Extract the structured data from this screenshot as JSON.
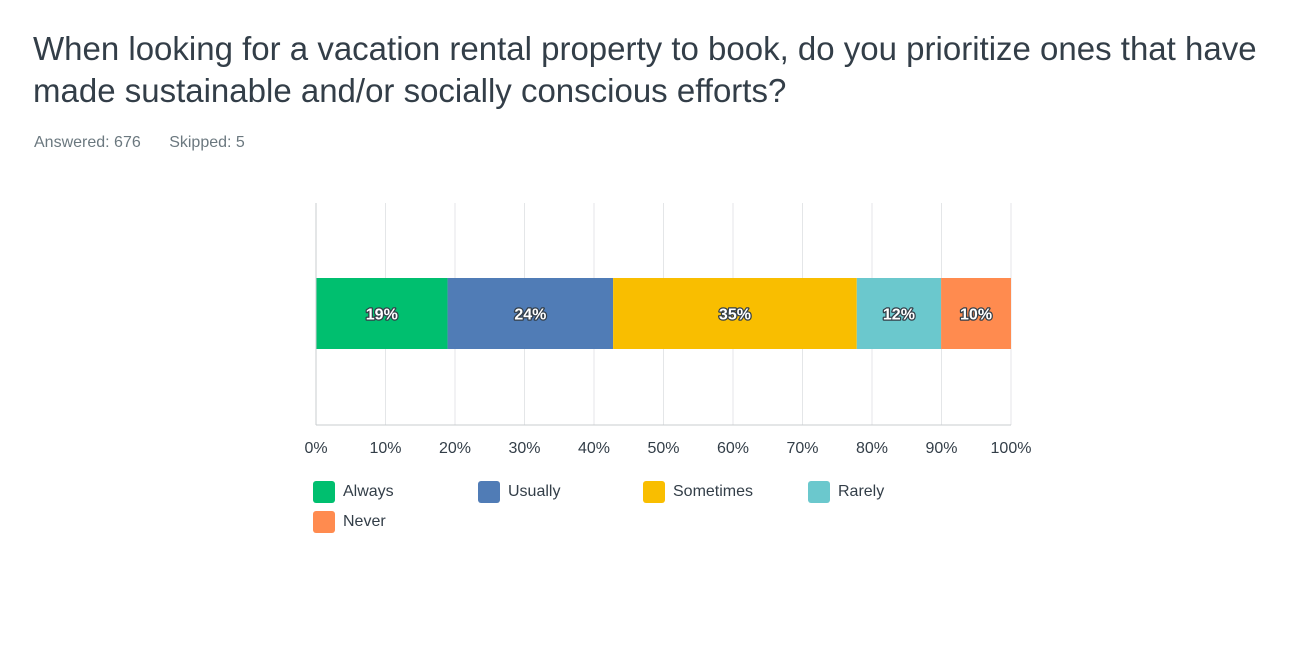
{
  "question": {
    "title": "When looking for a vacation rental property to book, do you prioritize ones that have made sustainable and/or socially conscious efforts?",
    "answered": "Answered: 676",
    "skipped": "Skipped: 5"
  },
  "chart_data": {
    "type": "bar",
    "orientation": "horizontal-stacked",
    "xlim": [
      0,
      100
    ],
    "x_ticks": [
      "0%",
      "10%",
      "20%",
      "30%",
      "40%",
      "50%",
      "60%",
      "70%",
      "80%",
      "90%",
      "100%"
    ],
    "grid": true,
    "legend_position": "bottom",
    "series": [
      {
        "name": "Always",
        "value": 18.93,
        "label": "19%",
        "color": "#00bf6f"
      },
      {
        "name": "Usually",
        "value": 23.82,
        "label": "24%",
        "color": "#507cb6"
      },
      {
        "name": "Sometimes",
        "value": 35.06,
        "label": "35%",
        "color": "#f9be00"
      },
      {
        "name": "Rarely",
        "value": 12.13,
        "label": "12%",
        "color": "#6bc8cd"
      },
      {
        "name": "Never",
        "value": 10.06,
        "label": "10%",
        "color": "#ff8b4f"
      }
    ]
  }
}
